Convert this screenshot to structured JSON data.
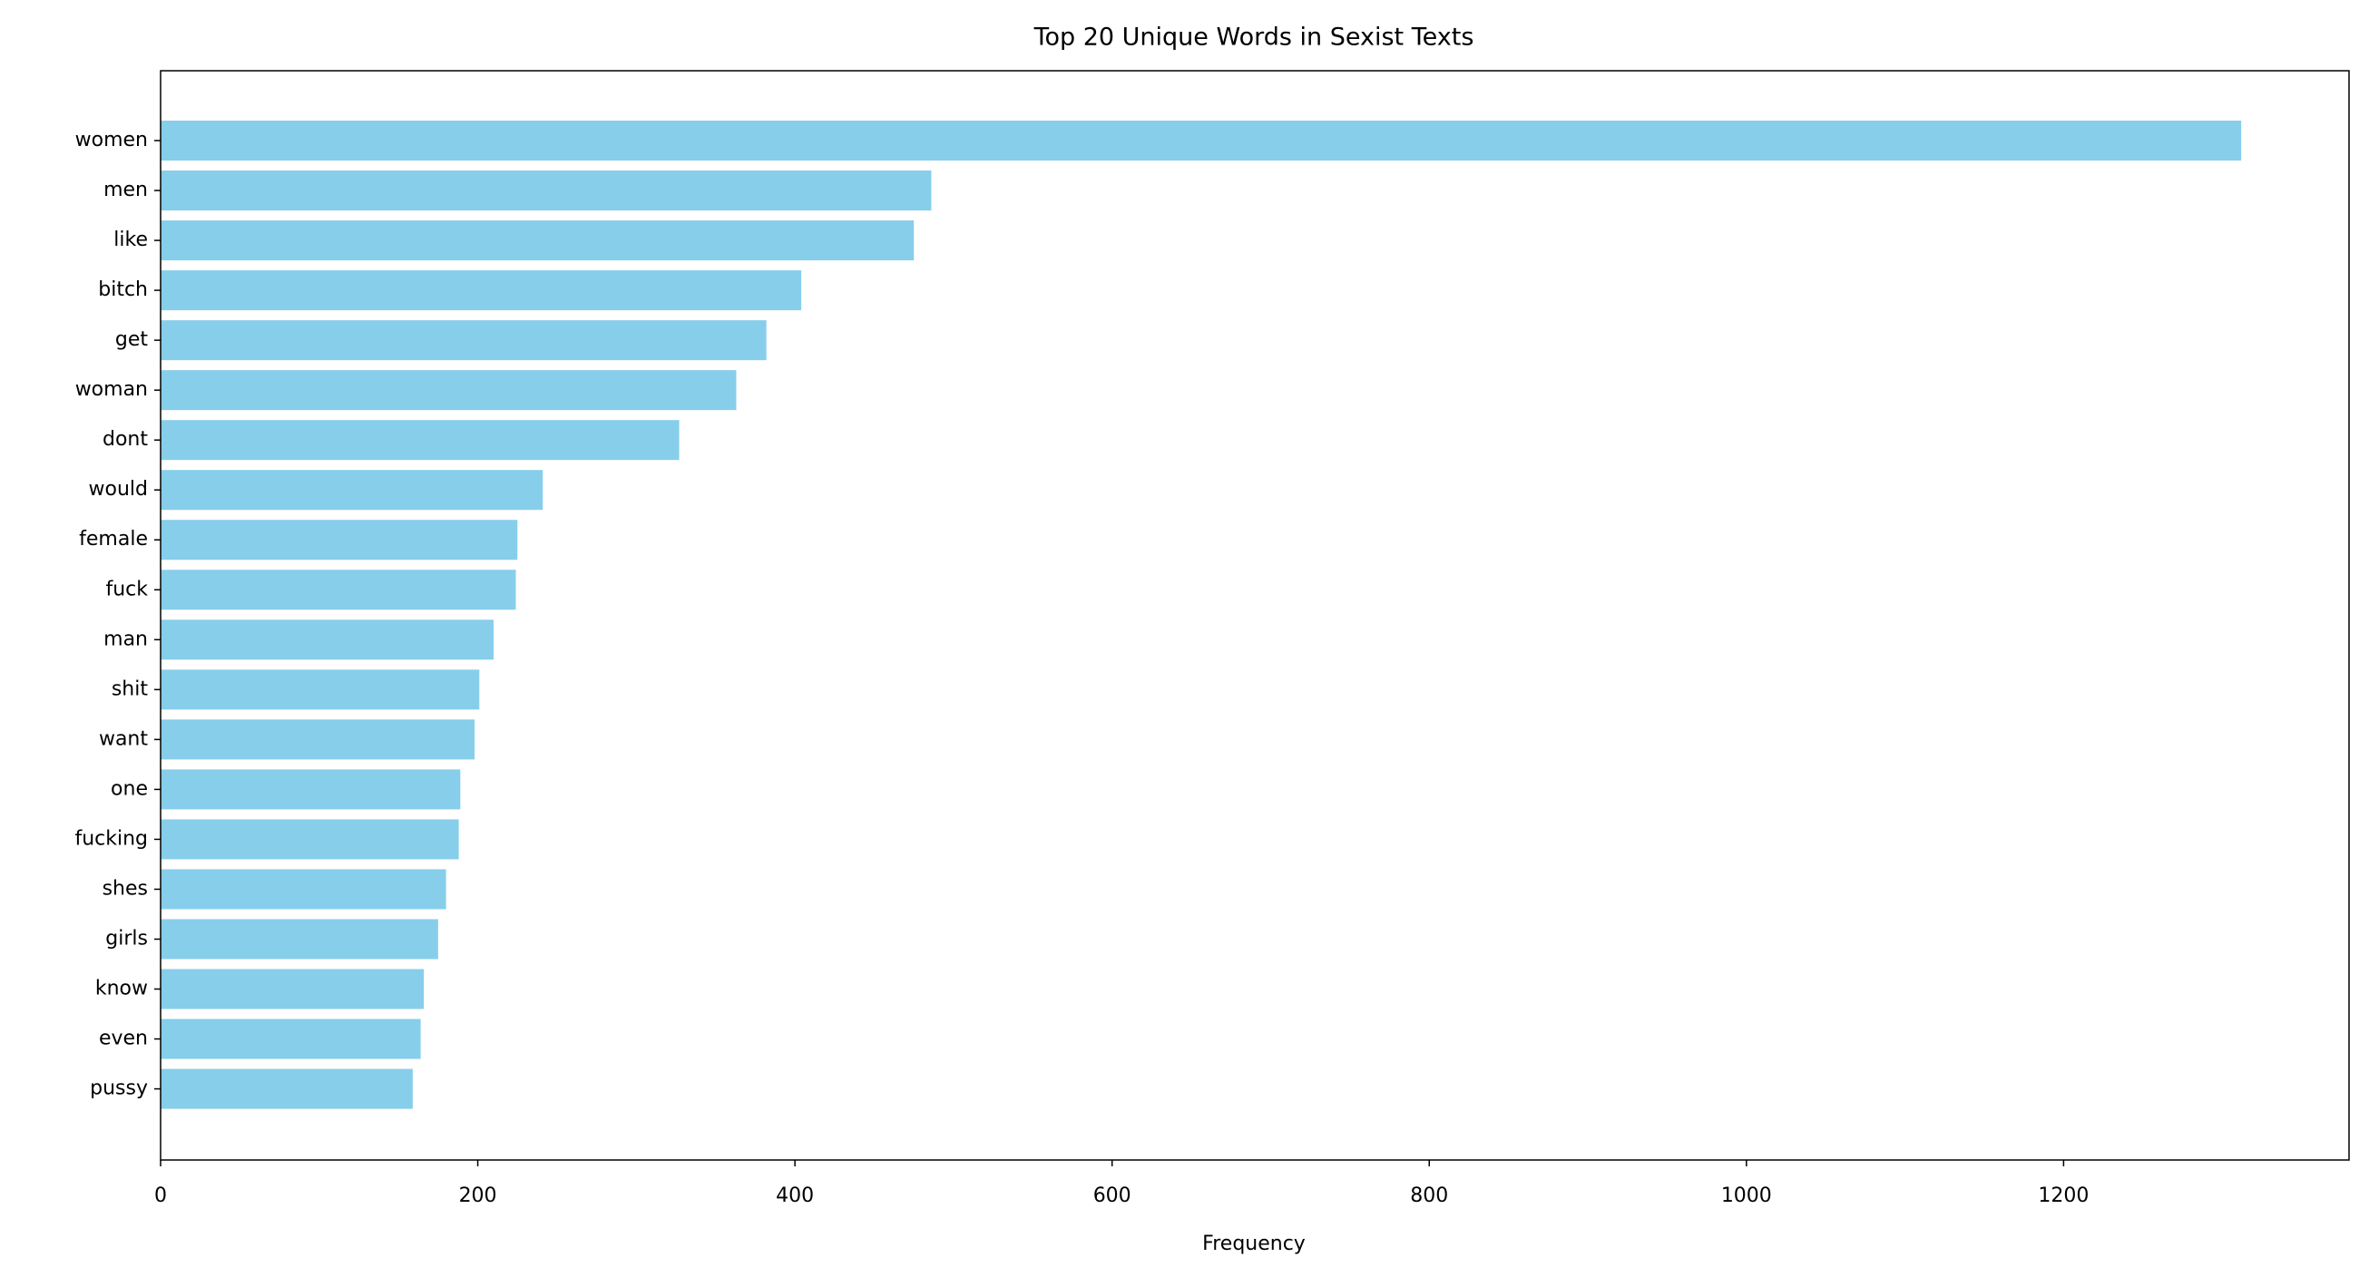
{
  "chart_data": {
    "type": "barh",
    "title": "Top 20 Unique Words in Sexist Texts",
    "x_label": "Frequency",
    "categories": [
      "women",
      "men",
      "like",
      "bitch",
      "get",
      "woman",
      "dont",
      "would",
      "female",
      "fuck",
      "man",
      "shit",
      "want",
      "one",
      "fucking",
      "shes",
      "girls",
      "know",
      "even",
      "pussy"
    ],
    "values": [
      1312,
      486,
      475,
      404,
      382,
      363,
      327,
      241,
      225,
      224,
      210,
      201,
      198,
      189,
      188,
      180,
      175,
      166,
      164,
      159
    ],
    "color": "#87ceeb",
    "xlim": [
      0,
      1380
    ],
    "xticks": [
      0,
      200,
      400,
      600,
      800,
      1000,
      1200
    ]
  }
}
